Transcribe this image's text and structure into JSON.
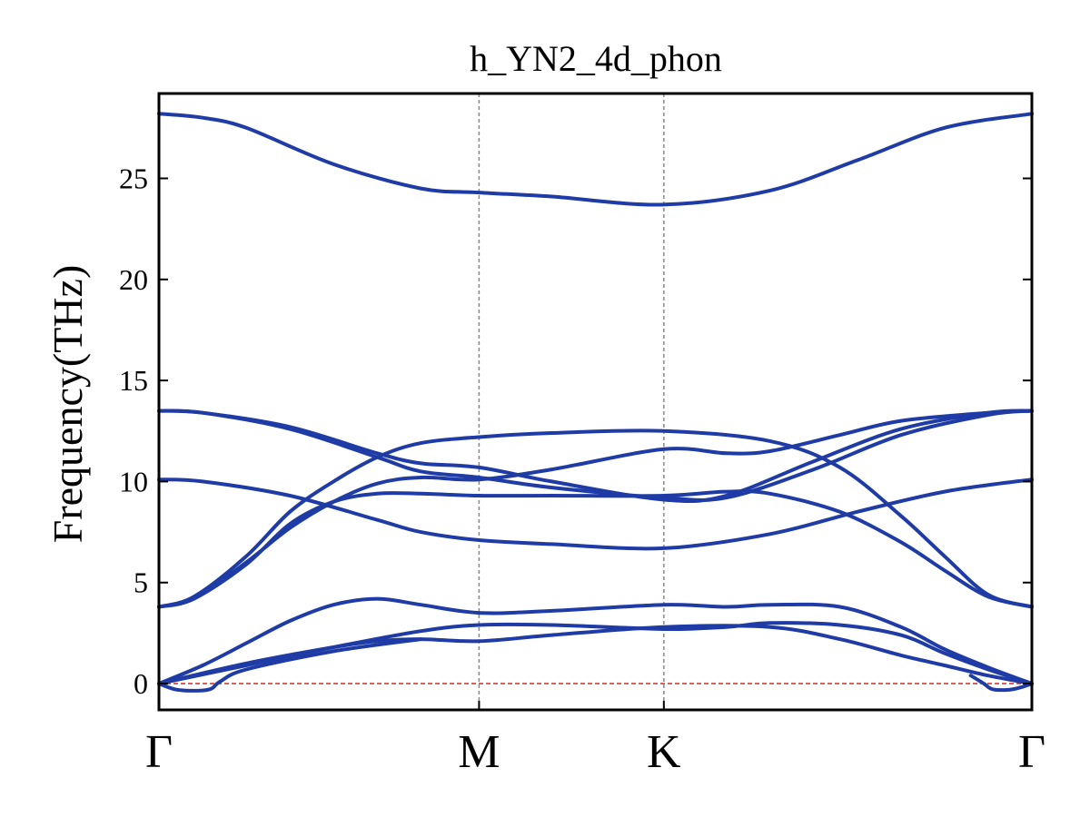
{
  "chart_data": {
    "type": "line",
    "title": "h_YN2_4d_phon",
    "xlabel": "",
    "ylabel": "Frequency(THz)",
    "ylim": [
      -1.3,
      29.2
    ],
    "yticks": [
      "0",
      "5",
      "10",
      "15",
      "20",
      "25"
    ],
    "path_ticks": [
      {
        "label": "Γ",
        "q": 0.0
      },
      {
        "label": "M",
        "q": 0.3667
      },
      {
        "label": "K",
        "q": 0.5784
      },
      {
        "label": "Γ",
        "q": 1.0
      }
    ],
    "grid": false,
    "zero_line": true,
    "colors": {
      "bands": "#1f3ba6",
      "zero_line": "#e0201a",
      "vlines": "#888888"
    },
    "series": [
      {
        "points": [
          [
            0.0,
            28.2
          ],
          [
            0.05,
            28.0
          ],
          [
            0.1,
            27.5
          ],
          [
            0.2,
            25.7
          ],
          [
            0.3,
            24.5
          ],
          [
            0.3667,
            24.3
          ],
          [
            0.45,
            24.1
          ],
          [
            0.5784,
            23.7
          ],
          [
            0.7,
            24.4
          ],
          [
            0.8,
            25.9
          ],
          [
            0.9,
            27.5
          ],
          [
            1.0,
            28.2
          ]
        ]
      },
      {
        "points": [
          [
            0.0,
            13.5
          ],
          [
            0.05,
            13.4
          ],
          [
            0.15,
            12.7
          ],
          [
            0.25,
            11.4
          ],
          [
            0.3,
            10.9
          ],
          [
            0.3667,
            10.7
          ],
          [
            0.45,
            10.0
          ],
          [
            0.5784,
            9.1
          ],
          [
            0.65,
            9.3
          ],
          [
            0.75,
            11.0
          ],
          [
            0.85,
            12.6
          ],
          [
            0.95,
            13.4
          ],
          [
            1.0,
            13.5
          ]
        ]
      },
      {
        "points": [
          [
            0.0,
            13.5
          ],
          [
            0.05,
            13.4
          ],
          [
            0.15,
            12.6
          ],
          [
            0.25,
            11.2
          ],
          [
            0.3,
            10.5
          ],
          [
            0.3667,
            10.2
          ],
          [
            0.45,
            9.7
          ],
          [
            0.5784,
            9.2
          ],
          [
            0.65,
            9.2
          ],
          [
            0.75,
            10.6
          ],
          [
            0.85,
            12.3
          ],
          [
            0.95,
            13.3
          ],
          [
            1.0,
            13.5
          ]
        ]
      },
      {
        "points": [
          [
            0.0,
            3.8
          ],
          [
            0.04,
            4.3
          ],
          [
            0.1,
            6.3
          ],
          [
            0.15,
            8.5
          ],
          [
            0.2,
            10.0
          ],
          [
            0.25,
            11.2
          ],
          [
            0.3,
            11.9
          ],
          [
            0.3667,
            12.2
          ],
          [
            0.45,
            12.4
          ],
          [
            0.5784,
            12.5
          ],
          [
            0.7,
            12.0
          ],
          [
            0.78,
            10.7
          ],
          [
            0.85,
            8.3
          ],
          [
            0.9,
            6.3
          ],
          [
            0.95,
            4.4
          ],
          [
            1.0,
            3.8
          ]
        ]
      },
      {
        "points": [
          [
            0.0,
            3.8
          ],
          [
            0.04,
            4.2
          ],
          [
            0.1,
            5.9
          ],
          [
            0.15,
            7.9
          ],
          [
            0.2,
            9.0
          ],
          [
            0.25,
            9.4
          ],
          [
            0.3,
            9.4
          ],
          [
            0.3667,
            9.3
          ],
          [
            0.45,
            9.3
          ],
          [
            0.5784,
            9.3
          ],
          [
            0.65,
            9.5
          ],
          [
            0.7,
            9.4
          ],
          [
            0.78,
            8.5
          ],
          [
            0.85,
            7.0
          ],
          [
            0.9,
            5.6
          ],
          [
            0.95,
            4.3
          ],
          [
            1.0,
            3.8
          ]
        ]
      },
      {
        "points": [
          [
            0.0,
            3.8
          ],
          [
            0.04,
            4.2
          ],
          [
            0.1,
            6.0
          ],
          [
            0.15,
            7.7
          ],
          [
            0.2,
            9.0
          ],
          [
            0.25,
            9.9
          ],
          [
            0.3,
            10.2
          ],
          [
            0.3667,
            10.1
          ],
          [
            0.45,
            10.6
          ],
          [
            0.5784,
            11.6
          ],
          [
            0.65,
            11.4
          ],
          [
            0.7,
            11.5
          ],
          [
            0.78,
            12.3
          ],
          [
            0.85,
            13.0
          ],
          [
            0.95,
            13.4
          ],
          [
            1.0,
            13.5
          ]
        ]
      },
      {
        "points": [
          [
            0.0,
            10.1
          ],
          [
            0.05,
            10.0
          ],
          [
            0.15,
            9.3
          ],
          [
            0.25,
            8.1
          ],
          [
            0.3,
            7.5
          ],
          [
            0.3667,
            7.1
          ],
          [
            0.45,
            6.9
          ],
          [
            0.5784,
            6.7
          ],
          [
            0.7,
            7.4
          ],
          [
            0.8,
            8.5
          ],
          [
            0.9,
            9.5
          ],
          [
            1.0,
            10.1
          ]
        ]
      },
      {
        "points": [
          [
            0.0,
            0.0
          ],
          [
            0.05,
            0.9
          ],
          [
            0.1,
            2.0
          ],
          [
            0.15,
            3.1
          ],
          [
            0.2,
            3.9
          ],
          [
            0.25,
            4.2
          ],
          [
            0.3,
            3.9
          ],
          [
            0.3667,
            3.5
          ],
          [
            0.45,
            3.6
          ],
          [
            0.5784,
            3.9
          ],
          [
            0.65,
            3.8
          ],
          [
            0.7,
            3.9
          ],
          [
            0.78,
            3.8
          ],
          [
            0.85,
            2.8
          ],
          [
            0.9,
            1.7
          ],
          [
            0.95,
            0.8
          ],
          [
            1.0,
            0.0
          ]
        ]
      },
      {
        "points": [
          [
            0.0,
            0.0
          ],
          [
            0.1,
            0.9
          ],
          [
            0.2,
            1.8
          ],
          [
            0.3,
            2.6
          ],
          [
            0.3667,
            2.9
          ],
          [
            0.45,
            2.9
          ],
          [
            0.5784,
            2.7
          ],
          [
            0.65,
            2.8
          ],
          [
            0.7,
            3.0
          ],
          [
            0.78,
            2.9
          ],
          [
            0.85,
            2.4
          ],
          [
            0.9,
            1.5
          ],
          [
            0.95,
            0.7
          ],
          [
            1.0,
            0.0
          ]
        ]
      },
      {
        "points": [
          [
            0.0,
            0.0
          ],
          [
            0.1,
            1.0
          ],
          [
            0.2,
            1.8
          ],
          [
            0.25,
            2.1
          ],
          [
            0.3,
            2.2
          ],
          [
            0.3667,
            2.1
          ],
          [
            0.45,
            2.4
          ],
          [
            0.5784,
            2.8
          ],
          [
            0.7,
            2.8
          ],
          [
            0.78,
            2.2
          ],
          [
            0.85,
            1.4
          ],
          [
            0.9,
            0.9
          ],
          [
            0.95,
            0.4
          ],
          [
            1.0,
            0.0
          ]
        ]
      },
      {
        "points": [
          [
            0.0,
            0.0
          ],
          [
            0.02,
            -0.3
          ],
          [
            0.045,
            -0.35
          ],
          [
            0.06,
            -0.25
          ],
          [
            0.07,
            0.1
          ],
          [
            0.1,
            0.7
          ],
          [
            0.2,
            1.6
          ],
          [
            0.3,
            2.2
          ]
        ]
      },
      {
        "points": [
          [
            0.93,
            0.4
          ],
          [
            0.945,
            0.0
          ],
          [
            0.955,
            -0.28
          ],
          [
            0.975,
            -0.3
          ],
          [
            0.99,
            -0.15
          ],
          [
            1.0,
            0.0
          ]
        ]
      }
    ]
  }
}
